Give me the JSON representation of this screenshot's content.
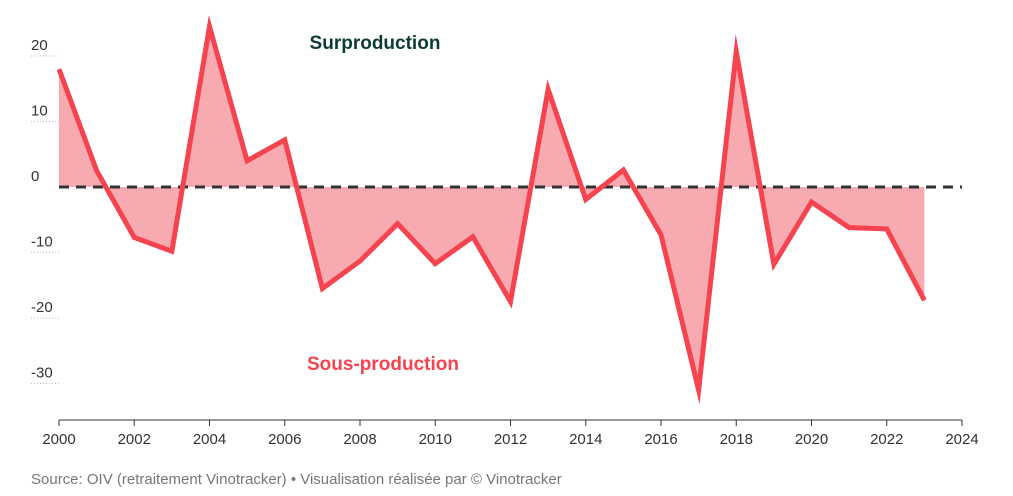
{
  "chart_data": {
    "type": "area",
    "x": [
      2000,
      2001,
      2002,
      2003,
      2004,
      2005,
      2006,
      2007,
      2008,
      2009,
      2010,
      2011,
      2012,
      2013,
      2014,
      2015,
      2016,
      2017,
      2018,
      2019,
      2020,
      2021,
      2022,
      2023
    ],
    "values": [
      18,
      2.5,
      -7.7,
      -9.8,
      24.5,
      4,
      7.2,
      -15.5,
      -11.3,
      -5.6,
      -11.7,
      -7.6,
      -17.5,
      14.9,
      -1.9,
      2.6,
      -7.3,
      -31,
      20.7,
      -11.8,
      -2.3,
      -6.2,
      -6.4,
      -17.3
    ],
    "xticks": [
      "2000",
      "2002",
      "2004",
      "2006",
      "2008",
      "2010",
      "2012",
      "2014",
      "2016",
      "2018",
      "2020",
      "2022",
      "2024"
    ],
    "yticks": [
      "20",
      "10",
      "0",
      "-10",
      "-20",
      "-30"
    ],
    "xlim": [
      2000,
      2024
    ],
    "ylim": [
      -33,
      26
    ],
    "reference_line": 0,
    "annotations": {
      "above": "Surproduction",
      "below": "Sous-production"
    },
    "colors": {
      "line": "#f5434f",
      "fill": "#f7aaaf",
      "above_label": "#0b3b34",
      "below_label": "#f5434f",
      "zero_line": "#333333"
    }
  },
  "source": "Source: OIV (retraitement Vinotracker) • Visualisation réalisée par © Vinotracker"
}
